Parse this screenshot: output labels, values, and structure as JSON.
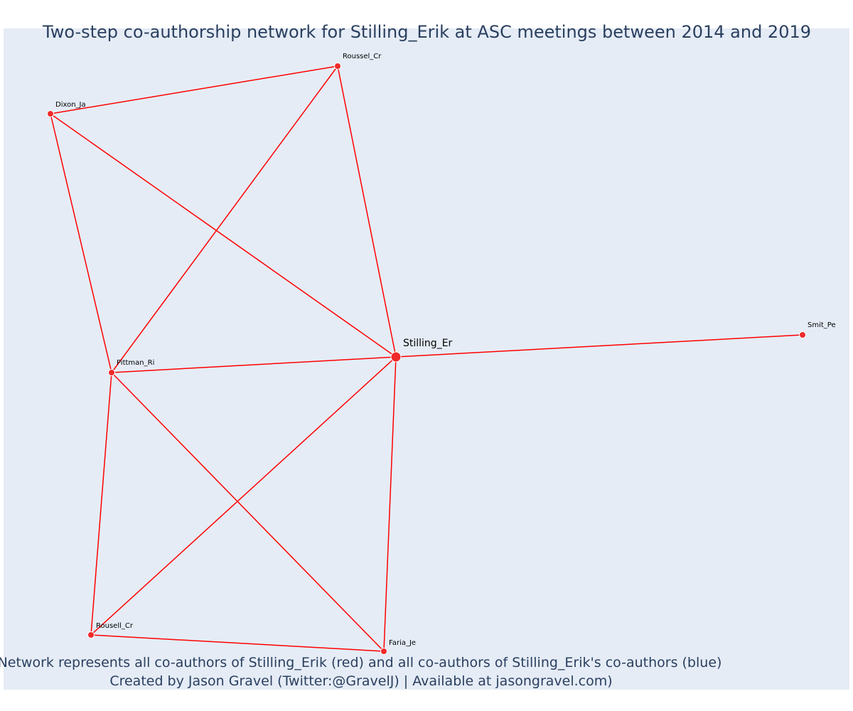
{
  "title": "Two-step co-authorship network for Stilling_Erik at ASC meetings between 2014 and 2019",
  "captions": [
    "Network represents all co-authors of Stilling_Erik (red) and all co-authors of Stilling_Erik's co-authors (blue)",
    "Created by Jason Gravel (Twitter:@GravelJ) | Available at jasongravel.com)"
  ],
  "colors": {
    "plot_background": "#e5ecf6",
    "edge": "#ff0000",
    "node": "#ef2a2a",
    "node_outline": "#ffffff",
    "text": "#2a3f5f"
  },
  "nodes": [
    {
      "id": "stilling",
      "label": "Stilling_Er",
      "focal": true
    },
    {
      "id": "roussel",
      "label": "Roussel_Cr",
      "focal": false
    },
    {
      "id": "dixon",
      "label": "Dixon_Ja",
      "focal": false
    },
    {
      "id": "smit",
      "label": "Smit_Pe",
      "focal": false
    },
    {
      "id": "pittman",
      "label": "Pittman_Ri",
      "focal": false
    },
    {
      "id": "rousell",
      "label": "Rousell_Cr",
      "focal": false
    },
    {
      "id": "faria",
      "label": "Faria_Je",
      "focal": false
    }
  ],
  "edges": [
    [
      "dixon",
      "roussel"
    ],
    [
      "dixon",
      "stilling"
    ],
    [
      "dixon",
      "pittman"
    ],
    [
      "roussel",
      "pittman"
    ],
    [
      "roussel",
      "stilling"
    ],
    [
      "pittman",
      "stilling"
    ],
    [
      "stilling",
      "smit"
    ],
    [
      "pittman",
      "rousell"
    ],
    [
      "pittman",
      "faria"
    ],
    [
      "stilling",
      "rousell"
    ],
    [
      "stilling",
      "faria"
    ],
    [
      "rousell",
      "faria"
    ]
  ]
}
